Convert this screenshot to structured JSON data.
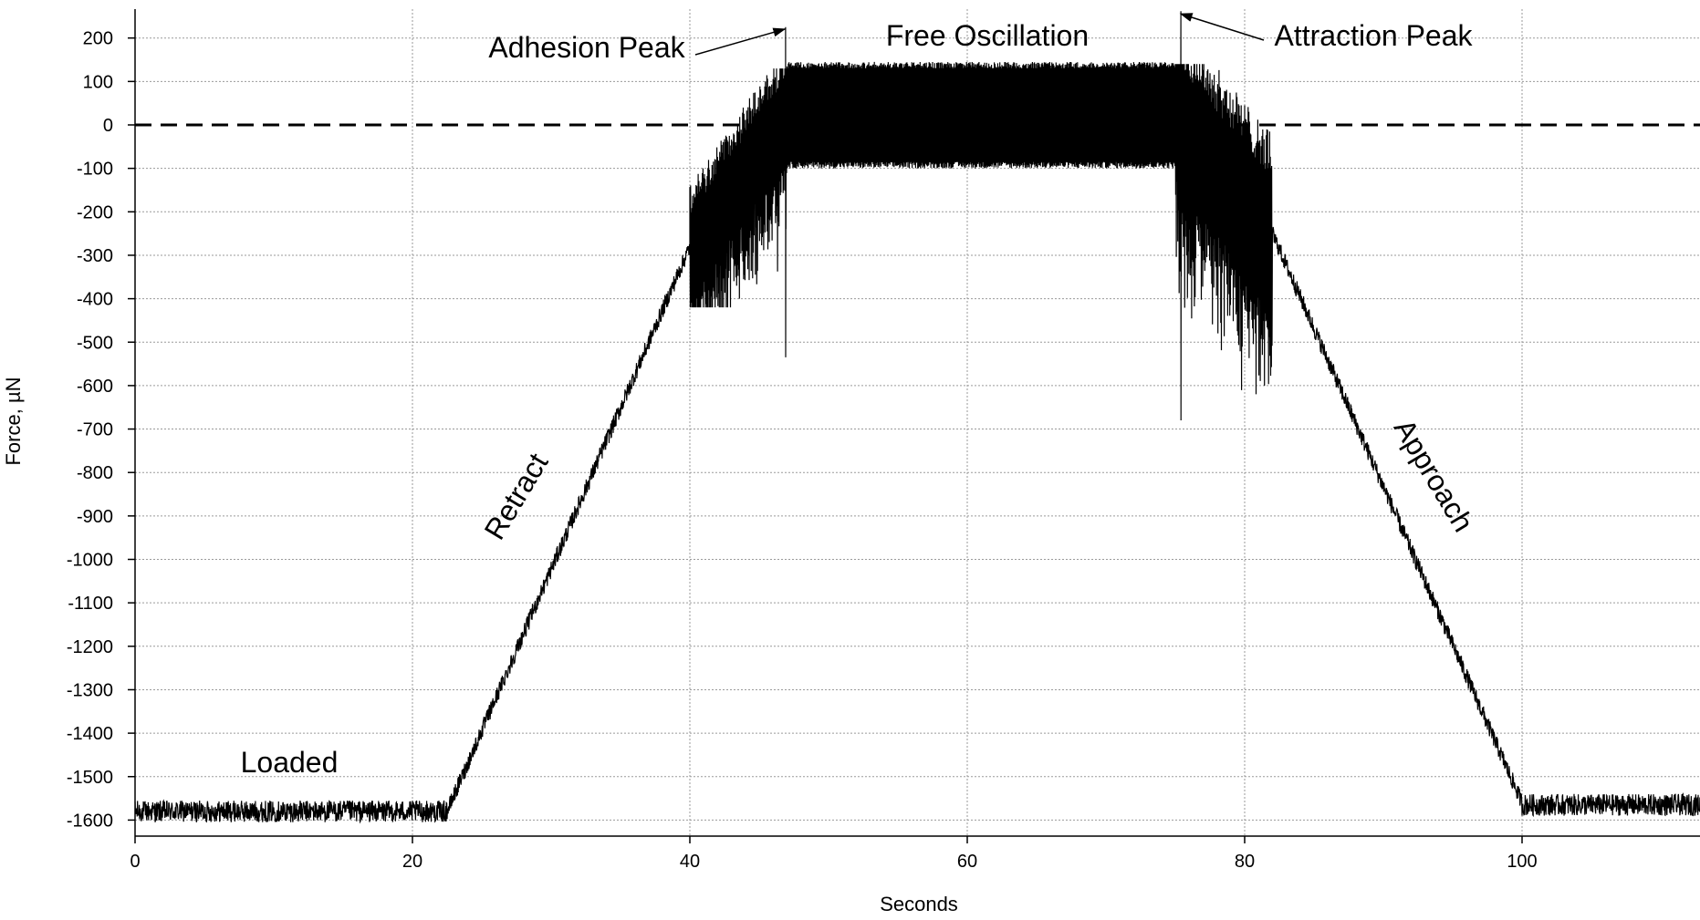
{
  "chart_data": {
    "type": "line",
    "title": "",
    "xlabel": "Seconds",
    "ylabel": "Force, µN",
    "xlim": [
      0,
      113
    ],
    "ylim": [
      -1640,
      255
    ],
    "x_ticks": [
      0,
      20,
      40,
      60,
      80,
      100
    ],
    "y_ticks": [
      200,
      100,
      0,
      -100,
      -200,
      -300,
      -400,
      -500,
      -600,
      -700,
      -800,
      -900,
      -1000,
      -1100,
      -1200,
      -1300,
      -1400,
      -1500,
      -1600
    ],
    "grid": "dotted",
    "reference_line": {
      "y": 0,
      "style": "dashed"
    },
    "series": [
      {
        "color": "#000000",
        "segments": [
          {
            "phase": "loaded",
            "x": [
              0,
              22.5
            ],
            "baseline": -1580,
            "noise_amplitude": 25
          },
          {
            "phase": "retract",
            "x": [
              22.5,
              40
            ],
            "y": [
              -1580,
              -280
            ],
            "noise_amplitude": 20
          },
          {
            "phase": "transition",
            "x": [
              40,
              47
            ],
            "y_min": -420,
            "y_max": 130
          },
          {
            "phase": "free oscillation",
            "x": [
              47,
              75
            ],
            "y_min": -100,
            "y_max": 145
          },
          {
            "phase": "transition",
            "x": [
              75,
              82
            ],
            "y_min": -620,
            "y_max": 140
          },
          {
            "phase": "approach",
            "x": [
              82,
              100
            ],
            "y": [
              -250,
              -1560
            ],
            "noise_amplitude": 20
          },
          {
            "phase": "loaded",
            "x": [
              100,
              113
            ],
            "baseline": -1565,
            "noise_amplitude": 25
          }
        ],
        "peaks": [
          {
            "x": 46.9,
            "y_max": 225,
            "y_min": -535
          },
          {
            "x": 75.4,
            "y_max": 262,
            "y_min": -680
          }
        ]
      }
    ],
    "annotations": [
      {
        "text": "Adhesion Peak",
        "x": 47,
        "y": 225,
        "arrow": true
      },
      {
        "text": "Free Oscillation",
        "x": 61,
        "y": 205,
        "arrow": false
      },
      {
        "text": "Attraction Peak",
        "x": 75.5,
        "y": 260,
        "arrow": true
      },
      {
        "text": "Loaded",
        "x": 11,
        "y": -1470,
        "arrow": false
      },
      {
        "text": "Retract",
        "x": 28,
        "y": -800,
        "arrow": false
      },
      {
        "text": "Approach",
        "x": 92,
        "y": -800,
        "arrow": false
      }
    ]
  }
}
